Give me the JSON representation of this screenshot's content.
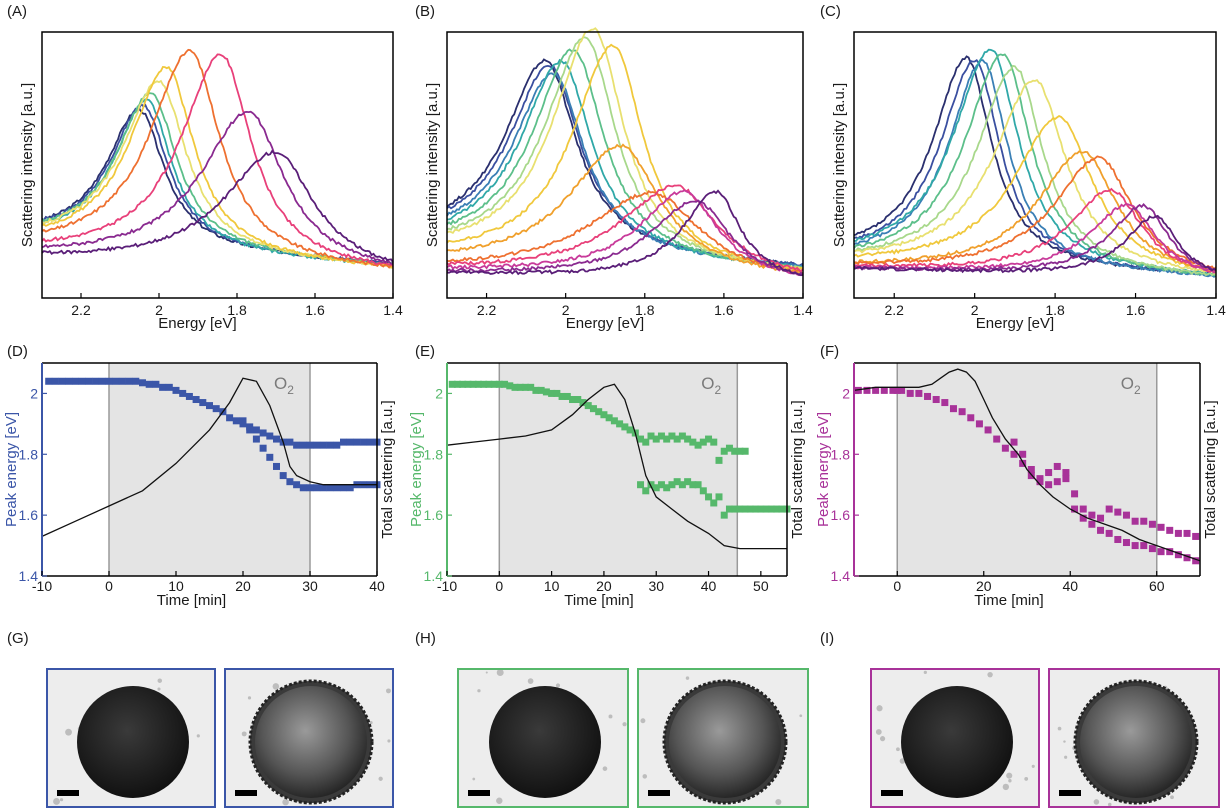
{
  "colors": {
    "blue": "#3b56a8",
    "green": "#56b86b",
    "magenta": "#a83299",
    "shade": "#e4e4e4",
    "spectra_palette": [
      "#2a2f6e",
      "#3a4fa0",
      "#3a7fb5",
      "#30a8a8",
      "#5cbf8a",
      "#a8d88b",
      "#e8e070",
      "#f0c83c",
      "#f0a02c",
      "#ee7030",
      "#e8407a",
      "#c83a9a",
      "#8a2a90",
      "#5a1e78"
    ]
  },
  "figure": {
    "panels": {
      "A": {
        "letter": "(A)"
      },
      "B": {
        "letter": "(B)"
      },
      "C": {
        "letter": "(C)"
      },
      "D": {
        "letter": "(D)"
      },
      "E": {
        "letter": "(E)"
      },
      "F": {
        "letter": "(F)"
      },
      "G": {
        "letter": "(G)"
      },
      "H": {
        "letter": "(H)"
      },
      "I": {
        "letter": "(I)"
      }
    },
    "spectra_xlabel": "Energy [eV]",
    "spectra_ylabel": "Scattering intensity [a.u.]",
    "spectra_xticks": [
      "2.2",
      "2",
      "1.8",
      "1.6",
      "1.4"
    ],
    "time_xlabel": "Time [min]",
    "time_ylabel_left": "Peak energy [eV]",
    "time_ylabel_right": "Total scattering [a.u.]",
    "o2_label": "O",
    "o2_sub": "2"
  },
  "chart_data": [
    {
      "id": "A",
      "type": "line",
      "xlabel": "Energy [eV]",
      "ylabel": "Scattering intensity [a.u.]",
      "xlim": [
        2.3,
        1.4
      ],
      "xticks": [
        2.2,
        2.0,
        1.8,
        1.6,
        1.4
      ],
      "x_reversed": true,
      "series": [
        {
          "peak": 2.05,
          "height": 0.56,
          "width": 0.09,
          "base": 0.22
        },
        {
          "peak": 2.04,
          "height": 0.58,
          "width": 0.09,
          "base": 0.22
        },
        {
          "peak": 2.03,
          "height": 0.61,
          "width": 0.09,
          "base": 0.21
        },
        {
          "peak": 2.02,
          "height": 0.64,
          "width": 0.095,
          "base": 0.21
        },
        {
          "peak": 2.0,
          "height": 0.7,
          "width": 0.1,
          "base": 0.2
        },
        {
          "peak": 1.98,
          "height": 0.77,
          "width": 0.1,
          "base": 0.19
        },
        {
          "peak": 1.92,
          "height": 0.86,
          "width": 0.11,
          "base": 0.17
        },
        {
          "peak": 1.84,
          "height": 0.86,
          "width": 0.11,
          "base": 0.16
        },
        {
          "peak": 1.77,
          "height": 0.64,
          "width": 0.13,
          "base": 0.15
        },
        {
          "peak": 1.7,
          "height": 0.49,
          "width": 0.14,
          "base": 0.14
        }
      ]
    },
    {
      "id": "B",
      "type": "line",
      "xlabel": "Energy [eV]",
      "ylabel": "Scattering intensity [a.u.]",
      "xlim": [
        2.3,
        1.4
      ],
      "xticks": [
        2.2,
        2.0,
        1.8,
        1.6,
        1.4
      ],
      "x_reversed": true,
      "series": [
        {
          "peak": 2.05,
          "height": 0.78,
          "width": 0.11,
          "base": 0.2
        },
        {
          "peak": 2.04,
          "height": 0.76,
          "width": 0.11,
          "base": 0.2
        },
        {
          "peak": 2.03,
          "height": 0.74,
          "width": 0.11,
          "base": 0.19
        },
        {
          "peak": 2.01,
          "height": 0.8,
          "width": 0.11,
          "base": 0.18
        },
        {
          "peak": 1.98,
          "height": 0.86,
          "width": 0.11,
          "base": 0.17
        },
        {
          "peak": 1.95,
          "height": 0.92,
          "width": 0.11,
          "base": 0.16
        },
        {
          "peak": 1.93,
          "height": 0.97,
          "width": 0.11,
          "base": 0.15
        },
        {
          "peak": 1.88,
          "height": 0.91,
          "width": 0.11,
          "base": 0.14
        },
        {
          "peak": 1.86,
          "height": 0.52,
          "width": 0.14,
          "base": 0.12
        },
        {
          "peak": 1.78,
          "height": 0.35,
          "width": 0.17,
          "base": 0.1
        },
        {
          "peak": 1.72,
          "height": 0.38,
          "width": 0.15,
          "base": 0.1
        },
        {
          "peak": 1.7,
          "height": 0.36,
          "width": 0.12,
          "base": 0.1
        },
        {
          "peak": 1.67,
          "height": 0.33,
          "width": 0.12,
          "base": 0.09
        },
        {
          "peak": 1.62,
          "height": 0.37,
          "width": 0.09,
          "base": 0.09
        }
      ]
    },
    {
      "id": "C",
      "type": "line",
      "xlabel": "Energy [eV]",
      "ylabel": "Scattering intensity [a.u.]",
      "xlim": [
        2.3,
        1.4
      ],
      "xticks": [
        2.2,
        2.0,
        1.8,
        1.6,
        1.4
      ],
      "x_reversed": true,
      "series": [
        {
          "peak": 2.02,
          "height": 0.85,
          "width": 0.09,
          "base": 0.14
        },
        {
          "peak": 2.0,
          "height": 0.84,
          "width": 0.09,
          "base": 0.14
        },
        {
          "peak": 1.98,
          "height": 0.85,
          "width": 0.09,
          "base": 0.13
        },
        {
          "peak": 1.96,
          "height": 0.9,
          "width": 0.1,
          "base": 0.13
        },
        {
          "peak": 1.93,
          "height": 0.89,
          "width": 0.1,
          "base": 0.12
        },
        {
          "peak": 1.9,
          "height": 0.84,
          "width": 0.1,
          "base": 0.12
        },
        {
          "peak": 1.85,
          "height": 0.79,
          "width": 0.11,
          "base": 0.12
        },
        {
          "peak": 1.79,
          "height": 0.64,
          "width": 0.12,
          "base": 0.12
        },
        {
          "peak": 1.73,
          "height": 0.51,
          "width": 0.12,
          "base": 0.11
        },
        {
          "peak": 1.69,
          "height": 0.49,
          "width": 0.12,
          "base": 0.11
        },
        {
          "peak": 1.66,
          "height": 0.36,
          "width": 0.11,
          "base": 0.11
        },
        {
          "peak": 1.62,
          "height": 0.3,
          "width": 0.1,
          "base": 0.11
        },
        {
          "peak": 1.58,
          "height": 0.3,
          "width": 0.09,
          "base": 0.11
        },
        {
          "peak": 1.55,
          "height": 0.26,
          "width": 0.08,
          "base": 0.11
        }
      ]
    },
    {
      "id": "D",
      "type": "scatter",
      "xlabel": "Time [min]",
      "ylabel": "Peak energy [eV]",
      "ylabel_right": "Total scattering [a.u.]",
      "xlim": [
        -10,
        40
      ],
      "xticks": [
        -10,
        0,
        10,
        20,
        30,
        40
      ],
      "ylim": [
        1.4,
        2.1
      ],
      "yticks": [
        1.4,
        1.6,
        1.8,
        2.0
      ],
      "o2_window": [
        0,
        30
      ],
      "color": "blue",
      "series": [
        {
          "name": "upper",
          "x": [
            -9,
            -8,
            -7,
            -6,
            -5,
            -4,
            -3,
            -2,
            -1,
            0,
            1,
            2,
            3,
            4,
            5,
            6,
            7,
            8,
            9,
            10,
            11,
            12,
            13,
            14,
            15,
            16,
            17,
            18,
            19,
            20,
            21,
            22,
            23,
            24,
            25,
            26,
            27,
            28,
            29,
            30,
            31,
            32,
            33,
            34,
            35,
            36,
            37,
            38,
            39,
            40
          ],
          "y": [
            2.04,
            2.04,
            2.04,
            2.04,
            2.04,
            2.04,
            2.04,
            2.04,
            2.04,
            2.04,
            2.04,
            2.04,
            2.04,
            2.04,
            2.035,
            2.03,
            2.03,
            2.02,
            2.02,
            2.01,
            2.0,
            1.99,
            1.98,
            1.97,
            1.96,
            1.95,
            1.94,
            1.92,
            1.91,
            1.9,
            1.89,
            1.88,
            1.87,
            1.86,
            1.85,
            1.84,
            1.84,
            1.83,
            1.83,
            1.83,
            1.83,
            1.83,
            1.83,
            1.83,
            1.84,
            1.84,
            1.84,
            1.84,
            1.84,
            1.84
          ]
        },
        {
          "name": "lower",
          "x": [
            20,
            21,
            22,
            23,
            24,
            25,
            26,
            27,
            28,
            29,
            30,
            31,
            32,
            33,
            34,
            35,
            36,
            37,
            38,
            39,
            40
          ],
          "y": [
            1.91,
            1.88,
            1.85,
            1.82,
            1.79,
            1.76,
            1.73,
            1.71,
            1.7,
            1.69,
            1.69,
            1.69,
            1.69,
            1.69,
            1.69,
            1.69,
            1.69,
            1.7,
            1.7,
            1.7,
            1.7
          ]
        },
        {
          "name": "total",
          "line": true,
          "x": [
            -10,
            -5,
            0,
            5,
            10,
            15,
            18,
            20,
            22,
            24,
            26,
            27,
            28,
            30,
            32,
            35,
            40
          ],
          "y": [
            1.53,
            1.58,
            1.63,
            1.68,
            1.77,
            1.88,
            1.97,
            2.05,
            2.04,
            1.96,
            1.84,
            1.76,
            1.73,
            1.71,
            1.7,
            1.7,
            1.7
          ]
        }
      ]
    },
    {
      "id": "E",
      "type": "scatter",
      "xlabel": "Time [min]",
      "ylabel": "Peak energy [eV]",
      "ylabel_right": "Total scattering [a.u.]",
      "xlim": [
        -10,
        55
      ],
      "xticks": [
        -10,
        0,
        10,
        20,
        30,
        40,
        50
      ],
      "ylim": [
        1.4,
        2.1
      ],
      "yticks": [
        1.4,
        1.6,
        1.8,
        2.0
      ],
      "o2_window": [
        0,
        45.5
      ],
      "color": "green",
      "series": [
        {
          "name": "upper",
          "x": [
            -9,
            -8,
            -7,
            -6,
            -5,
            -4,
            -3,
            -2,
            -1,
            0,
            1,
            2,
            3,
            4,
            5,
            6,
            7,
            8,
            9,
            10,
            11,
            12,
            13,
            14,
            15,
            16,
            17,
            18,
            19,
            20,
            21,
            22,
            23,
            24,
            25,
            26,
            27,
            28,
            29,
            30,
            31,
            32,
            33,
            34,
            35,
            36,
            37,
            38,
            39,
            40,
            41,
            42,
            43,
            44,
            45,
            46,
            47
          ],
          "y": [
            2.03,
            2.03,
            2.03,
            2.03,
            2.03,
            2.03,
            2.03,
            2.03,
            2.03,
            2.03,
            2.03,
            2.025,
            2.02,
            2.02,
            2.02,
            2.02,
            2.01,
            2.01,
            2.005,
            2.0,
            2.0,
            1.99,
            1.99,
            1.98,
            1.98,
            1.97,
            1.96,
            1.95,
            1.94,
            1.93,
            1.92,
            1.91,
            1.9,
            1.89,
            1.88,
            1.87,
            1.85,
            1.84,
            1.86,
            1.85,
            1.86,
            1.85,
            1.86,
            1.85,
            1.86,
            1.85,
            1.84,
            1.83,
            1.84,
            1.85,
            1.84,
            1.78,
            1.81,
            1.82,
            1.81,
            1.81,
            1.81
          ]
        },
        {
          "name": "lower",
          "x": [
            27,
            28,
            29,
            30,
            31,
            32,
            33,
            34,
            35,
            36,
            37,
            38,
            39,
            40,
            41,
            42,
            43,
            44,
            45,
            46,
            47,
            48,
            49,
            50,
            51,
            52,
            53,
            54,
            55
          ],
          "y": [
            1.7,
            1.68,
            1.7,
            1.69,
            1.7,
            1.69,
            1.7,
            1.71,
            1.7,
            1.71,
            1.7,
            1.7,
            1.68,
            1.66,
            1.64,
            1.66,
            1.6,
            1.62,
            1.62,
            1.62,
            1.62,
            1.62,
            1.62,
            1.62,
            1.62,
            1.62,
            1.62,
            1.62,
            1.62
          ]
        },
        {
          "name": "total",
          "line": true,
          "x": [
            -10,
            -5,
            0,
            5,
            10,
            14,
            17,
            20,
            22,
            24,
            26,
            28,
            30,
            33,
            36,
            40,
            43,
            46,
            50,
            55
          ],
          "y": [
            1.83,
            1.84,
            1.85,
            1.86,
            1.88,
            1.93,
            1.98,
            2.02,
            2.03,
            1.98,
            1.87,
            1.73,
            1.66,
            1.62,
            1.58,
            1.54,
            1.5,
            1.49,
            1.49,
            1.49
          ]
        }
      ]
    },
    {
      "id": "F",
      "type": "scatter",
      "xlabel": "Time [min]",
      "ylabel": "Peak energy [eV]",
      "ylabel_right": "Total scattering [a.u.]",
      "xlim": [
        -10,
        70
      ],
      "xticks": [
        0,
        20,
        40,
        60
      ],
      "ylim": [
        1.4,
        2.1
      ],
      "yticks": [
        1.4,
        1.6,
        1.8,
        2.0
      ],
      "o2_window": [
        0,
        60
      ],
      "color": "magenta",
      "series": [
        {
          "name": "upper",
          "x": [
            -9,
            -7,
            -5,
            -3,
            -1,
            0,
            1,
            3,
            5,
            7,
            9,
            11,
            13,
            15,
            17,
            19,
            21,
            23,
            25,
            27,
            29,
            31,
            33,
            35,
            37,
            39,
            41,
            43,
            45,
            47,
            49,
            51,
            53,
            55,
            57,
            59,
            61,
            63,
            65,
            67,
            69
          ],
          "y": [
            2.01,
            2.01,
            2.01,
            2.01,
            2.01,
            2.01,
            2.01,
            2.0,
            2.0,
            1.99,
            1.98,
            1.97,
            1.95,
            1.94,
            1.92,
            1.9,
            1.88,
            1.85,
            1.82,
            1.84,
            1.8,
            1.75,
            1.72,
            1.74,
            1.76,
            1.74,
            1.67,
            1.62,
            1.6,
            1.59,
            1.62,
            1.61,
            1.6,
            1.58,
            1.58,
            1.57,
            1.56,
            1.55,
            1.54,
            1.54,
            1.53
          ]
        },
        {
          "name": "lower",
          "x": [
            27,
            29,
            31,
            33,
            35,
            37,
            39,
            41,
            43,
            45,
            47,
            49,
            51,
            53,
            55,
            57,
            59,
            61,
            63,
            65,
            67,
            69
          ],
          "y": [
            1.8,
            1.77,
            1.73,
            1.71,
            1.7,
            1.71,
            1.72,
            1.62,
            1.59,
            1.57,
            1.55,
            1.54,
            1.52,
            1.51,
            1.5,
            1.5,
            1.49,
            1.48,
            1.48,
            1.47,
            1.46,
            1.45
          ]
        },
        {
          "name": "total",
          "line": true,
          "x": [
            -10,
            -5,
            0,
            5,
            8,
            10,
            12,
            14,
            16,
            18,
            20,
            22,
            25,
            28,
            30,
            33,
            36,
            40,
            44,
            48,
            52,
            56,
            60,
            64,
            68,
            70
          ],
          "y": [
            2.01,
            2.02,
            2.02,
            2.02,
            2.03,
            2.05,
            2.07,
            2.08,
            2.07,
            2.04,
            1.98,
            1.92,
            1.85,
            1.8,
            1.75,
            1.7,
            1.66,
            1.62,
            1.59,
            1.57,
            1.55,
            1.52,
            1.5,
            1.48,
            1.46,
            1.45
          ]
        }
      ]
    }
  ]
}
